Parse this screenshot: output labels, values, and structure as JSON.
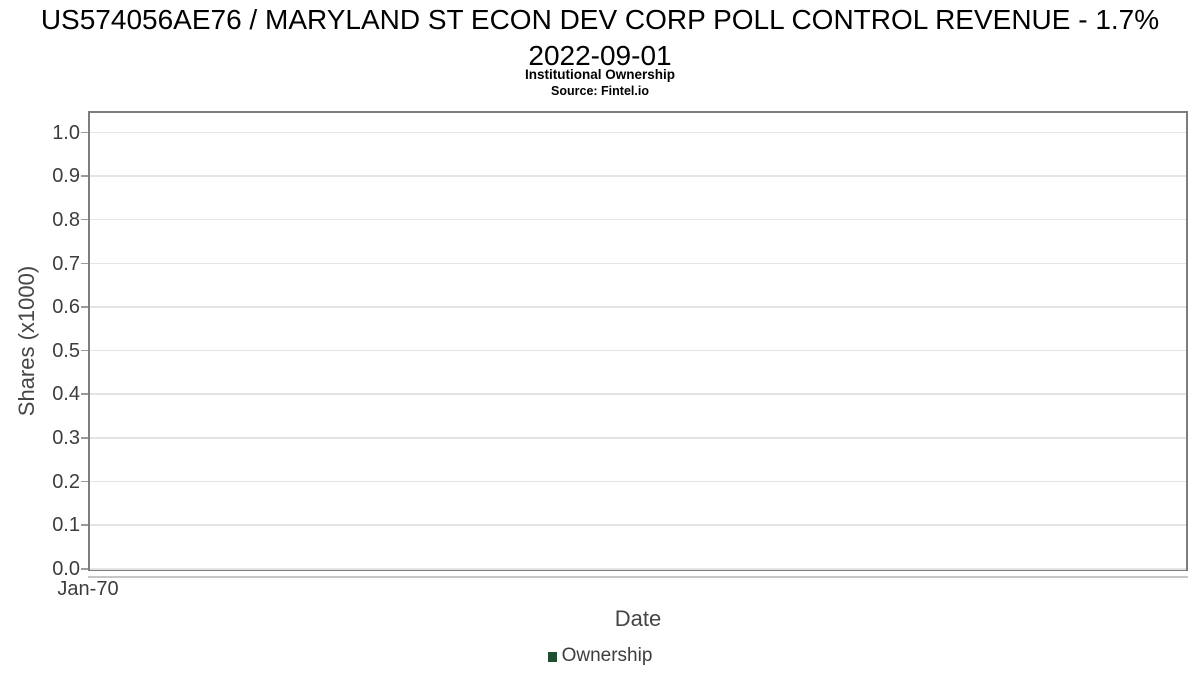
{
  "header": {
    "title_line1": "US574056AE76 / MARYLAND ST ECON DEV CORP POLL CONTROL REVENUE - 1.7%",
    "title_line2": "2022-09-01",
    "subtitle": "Institutional Ownership",
    "source": "Source: Fintel.io"
  },
  "chart_data": {
    "type": "line",
    "title": "US574056AE76 / MARYLAND ST ECON DEV CORP POLL CONTROL REVENUE - 1.7% 2022-09-01",
    "subtitle": "Institutional Ownership",
    "source": "Source: Fintel.io",
    "xlabel": "Date",
    "ylabel": "Shares (x1000)",
    "x_tick_labels": [
      "Jan-70"
    ],
    "y_ticks": [
      0.0,
      0.1,
      0.2,
      0.3,
      0.4,
      0.5,
      0.6,
      0.7,
      0.8,
      0.9,
      1.0
    ],
    "y_tick_labels": [
      "0.0",
      "0.1",
      "0.2",
      "0.3",
      "0.4",
      "0.5",
      "0.6",
      "0.7",
      "0.8",
      "0.9",
      "1.0"
    ],
    "ylim": [
      0,
      1.045
    ],
    "grid": "horizontal-only",
    "legend": {
      "position": "bottom-center",
      "entries": [
        {
          "label": "Ownership",
          "color": "#1e4f30"
        }
      ]
    },
    "series": [
      {
        "name": "Ownership",
        "color": "#1e4f30",
        "points": []
      }
    ],
    "colors": {
      "plot_border": "#7d7d7d",
      "gridline": "#e4e4e4",
      "axis_line_secondary": "#c6c6c6",
      "tick_text": "#3d3d3d",
      "axis_title_text": "#464646",
      "title_text": "#000000"
    }
  }
}
